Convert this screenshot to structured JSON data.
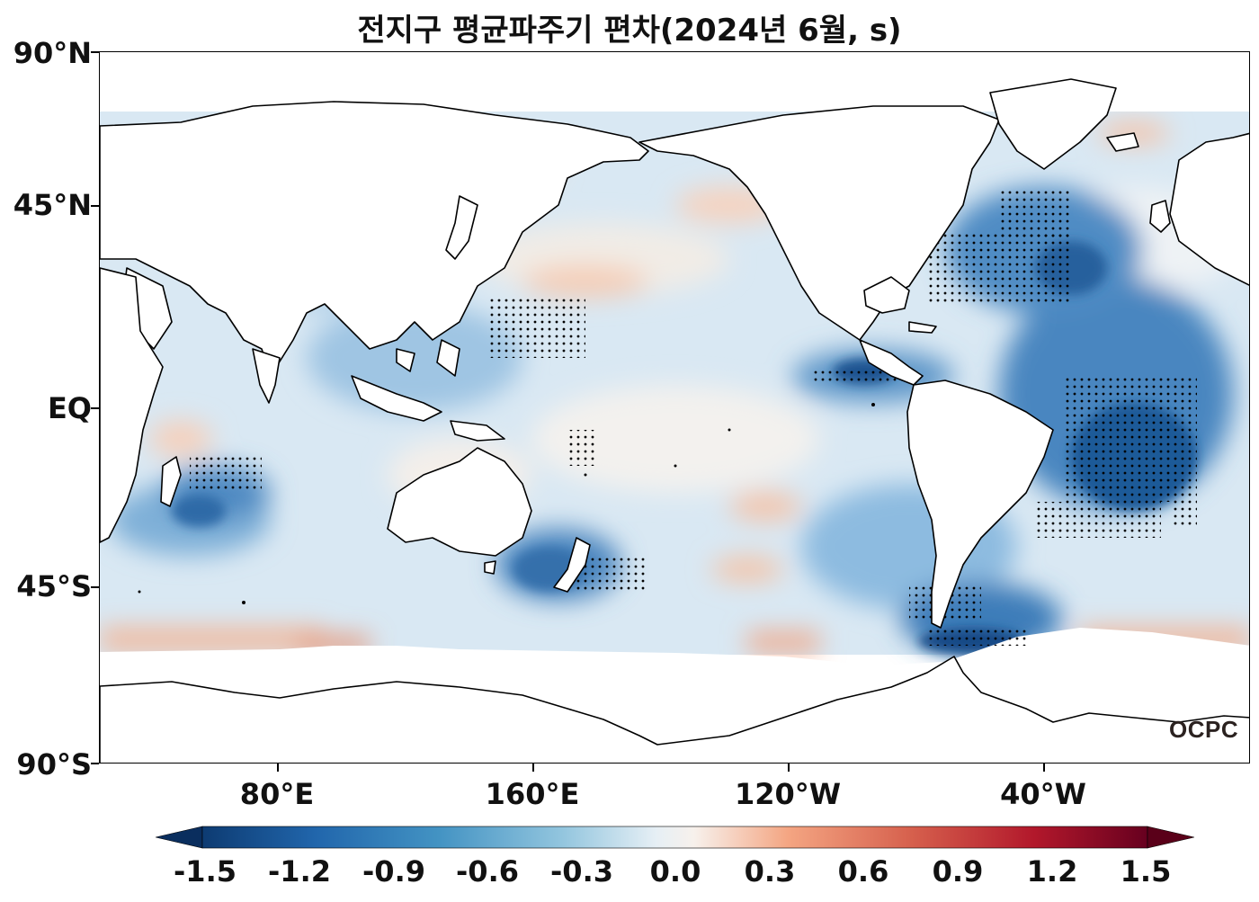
{
  "title": "전지구 평균파주기 편차(2024년 6월, s)",
  "logo_text": "OCPC",
  "axes": {
    "lat_ticks": [
      "90°N",
      "45°N",
      "EQ",
      "45°S",
      "90°S"
    ],
    "lon_ticks": [
      "80°E",
      "160°E",
      "120°W",
      "40°W"
    ]
  },
  "colorbar": {
    "min": -1.5,
    "max": 1.5,
    "extend": "both",
    "colormap": "RdBu_r",
    "tick_labels": [
      "-1.5",
      "-1.2",
      "-0.9",
      "-0.6",
      "-0.3",
      "0.0",
      "0.3",
      "0.6",
      "0.9",
      "1.2",
      "1.5"
    ]
  },
  "colors": {
    "neg_strong": "#0d3b72",
    "neg_mid": "#3a7dbb",
    "neg_light": "#c9dff0",
    "neutral": "#f5f3f1",
    "pos_light": "#f7c8ae",
    "pos_strong": "#7b0b21",
    "land": "#ffffff",
    "coast": "#000000"
  },
  "stippling": "significance dots over strong negative anomalies"
}
